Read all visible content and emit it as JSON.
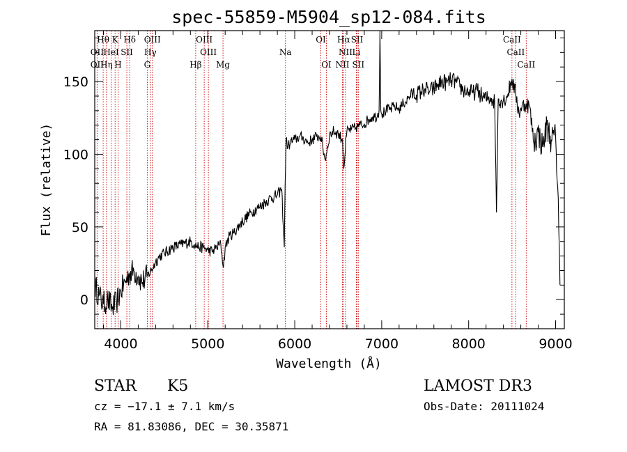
{
  "chart_data": {
    "type": "line",
    "title": "spec-55859-M5904_sp12-084.fits",
    "xlabel": "Wavelength (Å)",
    "ylabel": "Flux (relative)",
    "xlim": [
      3700,
      9100
    ],
    "ylim": [
      -20,
      185
    ],
    "xticks": [
      4000,
      5000,
      6000,
      7000,
      8000,
      9000
    ],
    "yticks": [
      0,
      50,
      100,
      150
    ],
    "series": [
      {
        "name": "flux",
        "x": [
          3700,
          3750,
          3800,
          3850,
          3900,
          3950,
          4000,
          4050,
          4100,
          4150,
          4200,
          4250,
          4300,
          4350,
          4400,
          4450,
          4500,
          4600,
          4700,
          4800,
          4850,
          4900,
          4950,
          5000,
          5050,
          5100,
          5150,
          5180,
          5200,
          5250,
          5300,
          5400,
          5500,
          5600,
          5700,
          5800,
          5850,
          5880,
          5890,
          5900,
          5920,
          5950,
          6000,
          6050,
          6100,
          6150,
          6200,
          6250,
          6300,
          6350,
          6400,
          6450,
          6500,
          6550,
          6563,
          6600,
          6650,
          6700,
          6750,
          6800,
          6850,
          6900,
          6950,
          6970,
          6980,
          6990,
          7000,
          7050,
          7100,
          7150,
          7200,
          7250,
          7300,
          7350,
          7400,
          7450,
          7500,
          7550,
          7600,
          7650,
          7700,
          7750,
          7800,
          7850,
          7900,
          7950,
          8000,
          8050,
          8100,
          8150,
          8200,
          8250,
          8300,
          8320,
          8340,
          8400,
          8450,
          8498,
          8542,
          8580,
          8600,
          8662,
          8700,
          8750,
          8800,
          8850,
          8900,
          8950,
          9000,
          9030,
          9050
        ],
        "values": [
          10,
          3,
          -3,
          0,
          -6,
          -2,
          6,
          12,
          18,
          20,
          16,
          12,
          16,
          20,
          26,
          30,
          32,
          36,
          38,
          40,
          38,
          36,
          36,
          34,
          33,
          36,
          38,
          22,
          36,
          44,
          46,
          54,
          60,
          64,
          69,
          72,
          76,
          36,
          80,
          110,
          105,
          108,
          110,
          112,
          111,
          108,
          110,
          112,
          112,
          96,
          113,
          116,
          114,
          110,
          90,
          116,
          117,
          118,
          120,
          121,
          124,
          126,
          126,
          130,
          185,
          130,
          128,
          130,
          131,
          133,
          131,
          135,
          138,
          142,
          141,
          143,
          145,
          143,
          145,
          148,
          150,
          149,
          151,
          150,
          146,
          144,
          143,
          142,
          144,
          140,
          138,
          139,
          136,
          60,
          138,
          137,
          141,
          152,
          141,
          128,
          132,
          135,
          133,
          108,
          115,
          105,
          120,
          110,
          112,
          70,
          10
        ]
      }
    ],
    "line_labels": [
      {
        "text": "Hθ",
        "x": 3797,
        "row": 0
      },
      {
        "text": "K",
        "x": 3934,
        "row": 0
      },
      {
        "text": "Hδ",
        "x": 4102,
        "row": 0
      },
      {
        "text": "OIII",
        "x": 4363,
        "row": 0
      },
      {
        "text": "OIII",
        "x": 4959,
        "row": 0
      },
      {
        "text": "OI",
        "x": 6300,
        "row": 0
      },
      {
        "text": "Hα",
        "x": 6563,
        "row": 0
      },
      {
        "text": "SII",
        "x": 6717,
        "row": 0
      },
      {
        "text": "CaII",
        "x": 8498,
        "row": 0
      },
      {
        "text": "OII",
        "x": 3727,
        "row": 1
      },
      {
        "text": "HeI",
        "x": 3889,
        "row": 1
      },
      {
        "text": "SII",
        "x": 4069,
        "row": 1
      },
      {
        "text": "Hγ",
        "x": 4340,
        "row": 1
      },
      {
        "text": "OIII",
        "x": 5007,
        "row": 1
      },
      {
        "text": "Na",
        "x": 5893,
        "row": 1
      },
      {
        "text": "NII",
        "x": 6584,
        "row": 1
      },
      {
        "text": "Li",
        "x": 6708,
        "row": 1
      },
      {
        "text": "CaII",
        "x": 8542,
        "row": 1
      },
      {
        "text": "OII",
        "x": 3727,
        "row": 2
      },
      {
        "text": "Hη",
        "x": 3835,
        "row": 2
      },
      {
        "text": "H",
        "x": 3968,
        "row": 2
      },
      {
        "text": "G",
        "x": 4304,
        "row": 2
      },
      {
        "text": "Hβ",
        "x": 4861,
        "row": 2
      },
      {
        "text": "Mg",
        "x": 5175,
        "row": 2
      },
      {
        "text": "OI",
        "x": 6364,
        "row": 2
      },
      {
        "text": "NII",
        "x": 6548,
        "row": 2
      },
      {
        "text": "SII",
        "x": 6731,
        "row": 2
      },
      {
        "text": "CaII",
        "x": 8662,
        "row": 2
      }
    ],
    "marker_lines": [
      3727,
      3797,
      3835,
      3889,
      3934,
      3968,
      4069,
      4102,
      4304,
      4340,
      4363,
      4861,
      4959,
      5007,
      5175,
      5893,
      6300,
      6364,
      6548,
      6563,
      6584,
      6708,
      6717,
      6731,
      8498,
      8542,
      8662
    ],
    "marker_color": "#cc0000"
  },
  "info": {
    "object_class": "STAR",
    "subclass": "K5",
    "survey": "LAMOST DR3",
    "cz": "cz = −17.1 ± 7.1 km/s",
    "obs_date": "Obs-Date: 20111024",
    "coords": "RA =  81.83086, DEC =  30.35871"
  }
}
